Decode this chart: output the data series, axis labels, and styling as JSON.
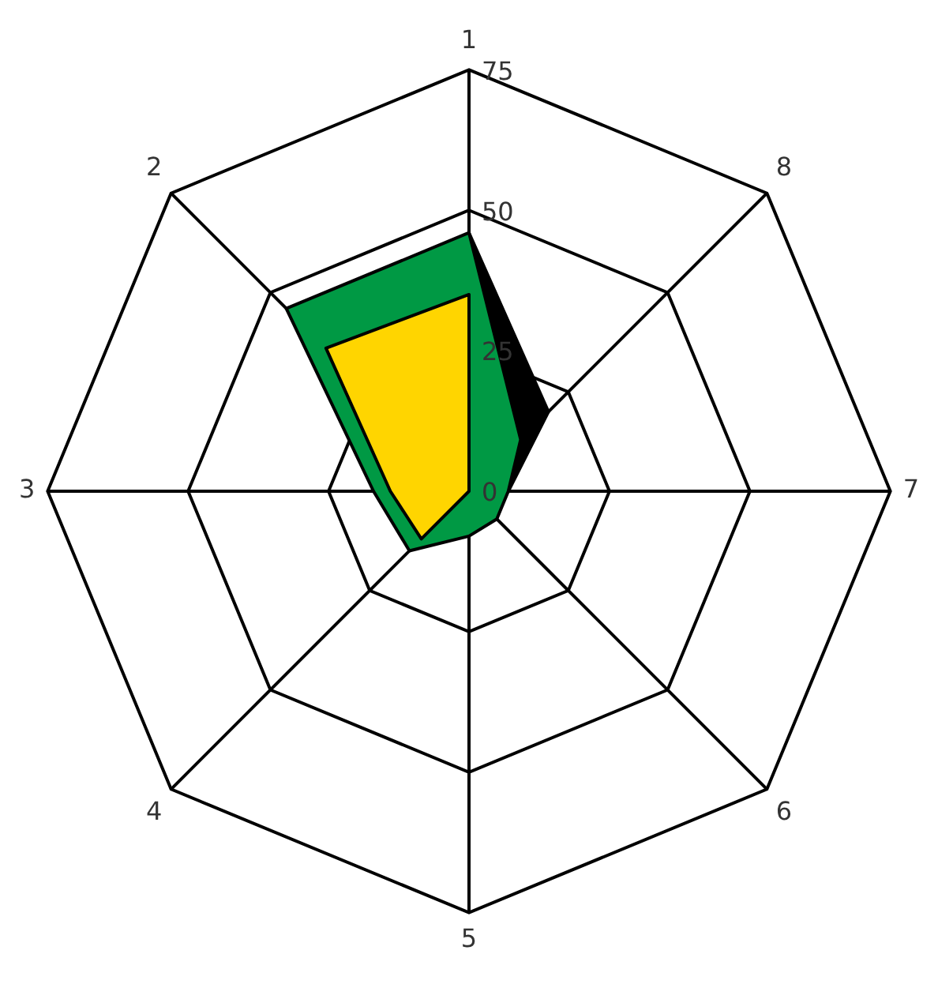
{
  "chart_data": {
    "type": "radar",
    "categories": [
      "1",
      "8",
      "7",
      "6",
      "5",
      "4",
      "3",
      "2"
    ],
    "series": [
      {
        "color": "#ffd500",
        "values": [
          35,
          0,
          0,
          0,
          0,
          12,
          14,
          36
        ]
      },
      {
        "color": "#009944",
        "values": [
          46,
          13,
          7,
          7,
          8,
          15,
          17,
          46
        ]
      },
      {
        "color": "#000000",
        "values": [
          46,
          20,
          7,
          null,
          null,
          null,
          null,
          null
        ]
      }
    ],
    "ylim": [
      0,
      75
    ],
    "yticks": [
      0,
      25,
      50,
      75
    ],
    "grid": true,
    "legend": false
  }
}
